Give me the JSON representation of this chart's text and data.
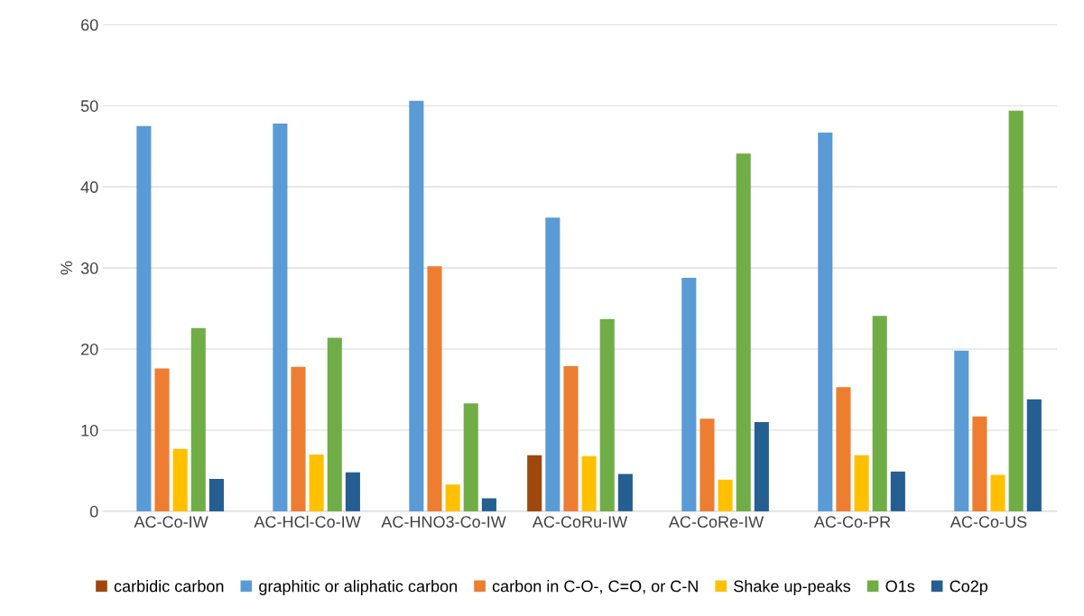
{
  "chart_data": {
    "type": "bar",
    "ylabel": "%",
    "categories": [
      "AC-Co-IW",
      "AC-HCl-Co-IW",
      "AC-HNO3-Co-IW",
      "AC-CoRu-IW",
      "AC-CoRe-IW",
      "AC-Co-PR",
      "AC-Co-US"
    ],
    "series": [
      {
        "name": "carbidic carbon",
        "color": "#9e480e",
        "values": [
          0,
          0,
          0,
          6.9,
          0,
          0,
          0
        ]
      },
      {
        "name": "graphitic or aliphatic carbon",
        "color": "#5b9bd5",
        "values": [
          47.5,
          47.8,
          50.6,
          36.2,
          28.8,
          46.7,
          19.8
        ]
      },
      {
        "name": "carbon in C-O-, C=O, or C-N",
        "color": "#ed7d31",
        "values": [
          17.6,
          17.8,
          30.2,
          17.9,
          11.4,
          15.3,
          11.7
        ]
      },
      {
        "name": "Shake up-peaks",
        "color": "#ffc000",
        "values": [
          7.7,
          7.0,
          3.3,
          6.8,
          3.9,
          6.9,
          4.5
        ]
      },
      {
        "name": "O1s",
        "color": "#70ad47",
        "values": [
          22.6,
          21.4,
          13.3,
          23.7,
          44.1,
          24.1,
          49.4
        ]
      },
      {
        "name": "Co2p",
        "color": "#255e91",
        "values": [
          4.0,
          4.8,
          1.6,
          4.6,
          11.0,
          4.9,
          13.8
        ]
      }
    ],
    "ylim": [
      0,
      60
    ],
    "yticks": [
      0,
      10,
      20,
      30,
      40,
      50,
      60
    ],
    "grid": "y",
    "legend": "bottom"
  }
}
